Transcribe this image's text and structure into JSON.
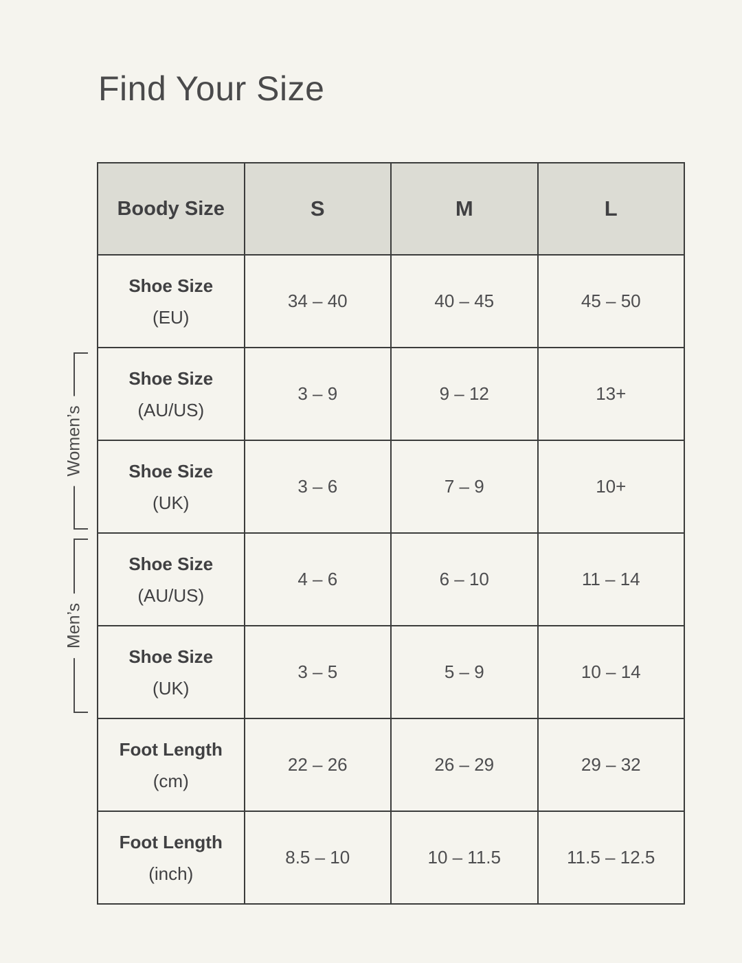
{
  "title": "Find Your Size",
  "chart_data": {
    "type": "table",
    "title": "Find Your Size",
    "columns": [
      "Boody Size",
      "S",
      "M",
      "L"
    ],
    "rows": [
      {
        "label": "Shoe Size",
        "unit": "(EU)",
        "values": [
          "34 – 40",
          "40 – 45",
          "45 – 50"
        ]
      },
      {
        "label": "Shoe Size",
        "unit": "(AU/US)",
        "values": [
          "3 – 9",
          "9 – 12",
          "13+"
        ]
      },
      {
        "label": "Shoe Size",
        "unit": "(UK)",
        "values": [
          "3 – 6",
          "7 – 9",
          "10+"
        ]
      },
      {
        "label": "Shoe Size",
        "unit": "(AU/US)",
        "values": [
          "4 – 6",
          "6 – 10",
          "11 – 14"
        ]
      },
      {
        "label": "Shoe Size",
        "unit": "(UK)",
        "values": [
          "3 – 5",
          "5 – 9",
          "10 – 14"
        ]
      },
      {
        "label": "Foot Length",
        "unit": "(cm)",
        "values": [
          "22 – 26",
          "26 – 29",
          "29 – 32"
        ]
      },
      {
        "label": "Foot Length",
        "unit": "(inch)",
        "values": [
          "8.5 – 10",
          "10 – 11.5",
          "11.5 – 12.5"
        ]
      }
    ],
    "row_groups": [
      {
        "label": "Women’s",
        "spans_rows": [
          2,
          3
        ]
      },
      {
        "label": "Men’s",
        "spans_rows": [
          4,
          5
        ]
      }
    ],
    "legend_position": "none",
    "grid": true
  },
  "colors": {
    "background": "#f5f4ee",
    "header_fill": "#dcdcd4",
    "border": "#3b3c3b",
    "title_text": "#4a4a4b",
    "cell_text": "#4d4d4f"
  }
}
